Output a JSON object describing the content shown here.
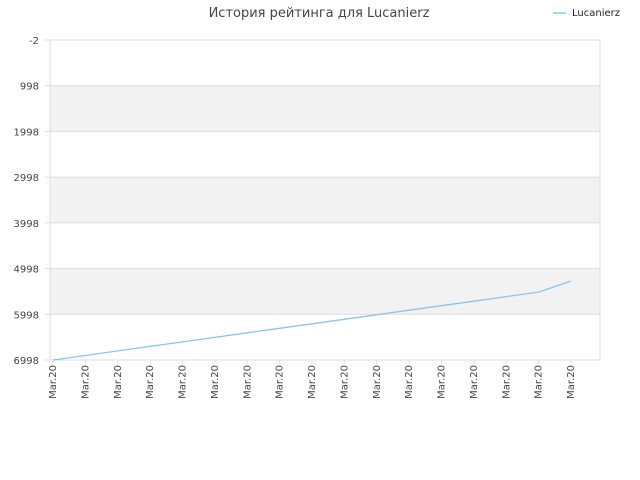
{
  "chart_data": {
    "type": "line",
    "title": "История рейтинга для Lucanierz",
    "xlabel": "",
    "ylabel": "",
    "y_inverted": true,
    "ylim": [
      -2,
      6998
    ],
    "yticks": [
      "-2",
      "998",
      "1998",
      "2998",
      "3998",
      "4998",
      "5998",
      "6998"
    ],
    "grid": true,
    "grid_style": "alternating horizontal bands",
    "legend_position": "top-right",
    "categories": [
      "Mar.20",
      "Mar.20",
      "Mar.20",
      "Mar.20",
      "Mar.20",
      "Mar.20",
      "Mar.20",
      "Mar.20",
      "Mar.20",
      "Mar.20",
      "Mar.20",
      "Mar.20",
      "Mar.20",
      "Mar.20",
      "Mar.20",
      "Mar.20",
      "Mar.20"
    ],
    "series": [
      {
        "name": "Lucanierz",
        "color": "#8cc4ec",
        "values": [
          6998,
          6899,
          6800,
          6701,
          6602,
          6503,
          6404,
          6305,
          6206,
          6107,
          6008,
          5909,
          5810,
          5711,
          5612,
          5513,
          5270
        ]
      }
    ]
  },
  "colors": {
    "band": "#f2f2f2",
    "grid": "#dddddd",
    "frame": "#dddddd",
    "line": "#8cc4ec"
  }
}
